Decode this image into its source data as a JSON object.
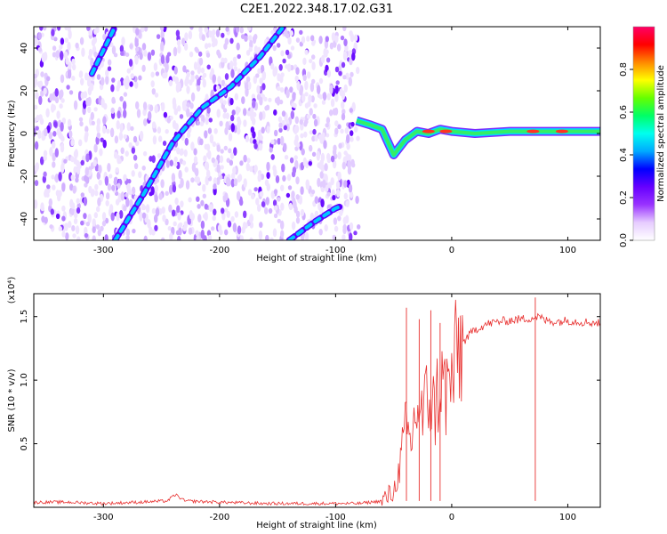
{
  "figure": {
    "title": "C2E1.2022.348.17.02.G31"
  },
  "chart_data": [
    {
      "type": "heatmap",
      "xlabel": "Height of straight line (km)",
      "ylabel": "Frequency (Hz)",
      "xlim": [
        -360,
        128
      ],
      "ylim": [
        -50,
        50
      ],
      "xticks": [
        -300,
        -200,
        -100,
        0,
        100
      ],
      "yticks": [
        -40,
        -20,
        0,
        20,
        40
      ],
      "colorbar": {
        "label": "Normalized spectral amplitude",
        "range": [
          0,
          1
        ],
        "ticks": [
          "0.0",
          "0.2",
          "0.4",
          "0.6",
          "0.8"
        ],
        "colors": [
          "#ffffff",
          "#e6ccff",
          "#9933ff",
          "#6600ff",
          "#0000ff",
          "#00aaff",
          "#00ffee",
          "#00ff66",
          "#66ff00",
          "#ffff00",
          "#ff8800",
          "#ff0000",
          "#ff0066"
        ]
      },
      "features": [
        {
          "name": "diagonal_track_1",
          "x": [
            -290,
            -265,
            -240,
            -215,
            -190,
            -165,
            -145
          ],
          "y": [
            -50,
            -28,
            -4,
            12,
            22,
            36,
            50
          ]
        },
        {
          "name": "diagonal_track_2",
          "x": [
            -310,
            -290
          ],
          "y": [
            28,
            50
          ]
        },
        {
          "name": "carrier_line",
          "x": [
            -82,
            -70,
            -60,
            -50,
            -40,
            -30,
            -20,
            -10,
            0,
            20,
            50,
            80,
            100,
            128
          ],
          "y": [
            6,
            4,
            2,
            -10,
            -3,
            1,
            0,
            2,
            1,
            0,
            1,
            1,
            1,
            1
          ]
        },
        {
          "name": "lower_track",
          "x": [
            -140,
            -120,
            -100,
            -95
          ],
          "y": [
            -50,
            -42,
            -35,
            -34
          ]
        }
      ],
      "noise_region_x": [
        -360,
        -80
      ]
    },
    {
      "type": "line",
      "xlabel": "Height of straight line (km)",
      "ylabel": "SNR (10 * v/v)",
      "y_multiplier": "(x10⁴)",
      "xlim": [
        -360,
        128
      ],
      "ylim": [
        0,
        1.68
      ],
      "xticks": [
        -300,
        -200,
        -100,
        0,
        100
      ],
      "yticks": [
        "0.5",
        "1.0",
        "1.5"
      ],
      "series": [
        {
          "color": "#e8302f",
          "x": [
            -360,
            -330,
            -300,
            -270,
            -245,
            -238,
            -230,
            -200,
            -160,
            -120,
            -80,
            -60,
            -50,
            -45,
            -40,
            -35,
            -30,
            -25,
            -20,
            -15,
            -10,
            -5,
            0,
            5,
            10,
            20,
            30,
            40,
            50,
            60,
            70,
            75,
            80,
            90,
            100,
            110,
            128
          ],
          "values": [
            0.04,
            0.04,
            0.03,
            0.04,
            0.05,
            0.1,
            0.05,
            0.04,
            0.03,
            0.03,
            0.03,
            0.05,
            0.12,
            0.3,
            0.6,
            0.5,
            0.8,
            0.7,
            0.9,
            0.75,
            1.0,
            0.9,
            1.0,
            1.2,
            1.3,
            1.4,
            1.44,
            1.46,
            1.47,
            1.48,
            1.49,
            1.5,
            1.47,
            1.46,
            1.47,
            1.46,
            1.45
          ]
        }
      ],
      "spikes": [
        {
          "x": -39,
          "peak": 1.57
        },
        {
          "x": -28,
          "peak": 1.48
        },
        {
          "x": -18,
          "peak": 1.55
        },
        {
          "x": -10,
          "peak": 1.45
        },
        {
          "x": 72,
          "peak": 1.65
        }
      ]
    }
  ]
}
